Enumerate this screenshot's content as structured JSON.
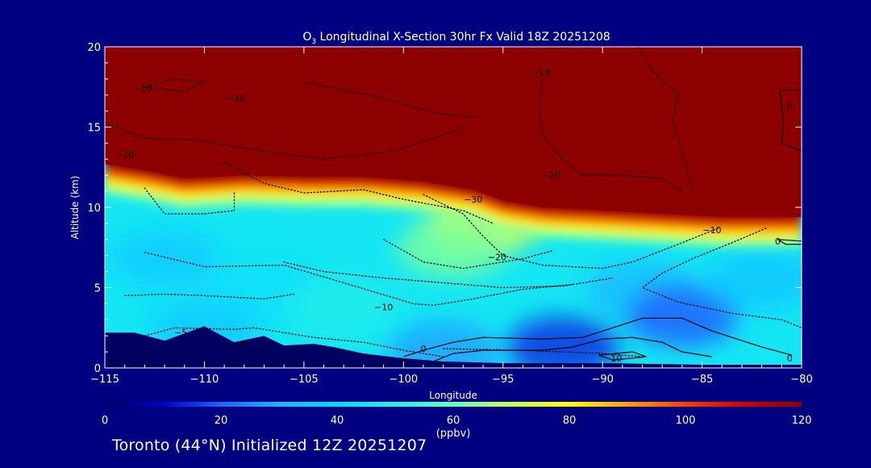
{
  "chart_data": {
    "type": "heatmap",
    "title": {
      "prefix": "O",
      "subscript": "3",
      "rest": " Longitudinal X-Section 30hr  Fx Valid 18Z 20251208"
    },
    "xlabel": "Longitude",
    "ylabel": "Altitude (km)",
    "xlim": [
      -115,
      -80
    ],
    "ylim": [
      0,
      20
    ],
    "x_ticks": [
      {
        "value": -115,
        "label": "−115"
      },
      {
        "value": -110,
        "label": "−110"
      },
      {
        "value": -105,
        "label": "−105"
      },
      {
        "value": -100,
        "label": "−100"
      },
      {
        "value": -95,
        "label": "−95"
      },
      {
        "value": -90,
        "label": "−90"
      },
      {
        "value": -85,
        "label": "−85"
      },
      {
        "value": -80,
        "label": "−80"
      }
    ],
    "y_ticks": [
      {
        "value": 0,
        "label": "0"
      },
      {
        "value": 5,
        "label": "5"
      },
      {
        "value": 10,
        "label": "10"
      },
      {
        "value": 15,
        "label": "15"
      },
      {
        "value": 20,
        "label": "20"
      }
    ],
    "colorbar": {
      "label": "(ppbv)",
      "min": 0,
      "max": 120,
      "ticks": [
        {
          "value": 0,
          "label": "0"
        },
        {
          "value": 20,
          "label": "20"
        },
        {
          "value": 40,
          "label": "40"
        },
        {
          "value": 60,
          "label": "60"
        },
        {
          "value": 80,
          "label": "80"
        },
        {
          "value": 100,
          "label": "100"
        },
        {
          "value": 120,
          "label": "120"
        }
      ],
      "colors": [
        "#000060",
        "#0000c8",
        "#1e64ff",
        "#1eb4ff",
        "#00dcff",
        "#28f0e6",
        "#64ffb4",
        "#c8ff50",
        "#ffff00",
        "#ffa000",
        "#ff3c00",
        "#d20000",
        "#8c0000"
      ]
    },
    "ozone_field": {
      "tropopause_height_km": [
        {
          "lon": -115,
          "km": 12.4
        },
        {
          "lon": -113,
          "km": 12.0
        },
        {
          "lon": -111,
          "km": 11.5
        },
        {
          "lon": -108,
          "km": 11.7
        },
        {
          "lon": -105,
          "km": 11.6
        },
        {
          "lon": -102,
          "km": 11.6
        },
        {
          "lon": -99,
          "km": 11.3
        },
        {
          "lon": -96.5,
          "km": 10.8
        },
        {
          "lon": -95,
          "km": 10.1
        },
        {
          "lon": -93,
          "km": 9.7
        },
        {
          "lon": -90,
          "km": 9.5
        },
        {
          "lon": -87,
          "km": 9.3
        },
        {
          "lon": -84,
          "km": 9.1
        },
        {
          "lon": -80,
          "km": 9.1
        }
      ],
      "stratosphere_ppbv": 120,
      "troposphere_ppbv": 45,
      "patches": [
        {
          "lon": -96,
          "km": 9.0,
          "ppbv": 75
        },
        {
          "lon": -97.5,
          "km": 7.5,
          "ppbv": 62
        },
        {
          "lon": -107,
          "km": 5.0,
          "ppbv": 42
        },
        {
          "lon": -112,
          "km": 6.8,
          "ppbv": 36
        },
        {
          "lon": -103,
          "km": 3.8,
          "ppbv": 48
        },
        {
          "lon": -88,
          "km": 4.8,
          "ppbv": 32
        },
        {
          "lon": -86,
          "km": 3.2,
          "ppbv": 20
        },
        {
          "lon": -92,
          "km": 1.3,
          "ppbv": 15
        },
        {
          "lon": -98,
          "km": 1.0,
          "ppbv": 28
        },
        {
          "lon": -82,
          "km": 5.5,
          "ppbv": 35
        },
        {
          "lon": -110,
          "km": 2.5,
          "ppbv": 36
        }
      ]
    },
    "terrain": [
      {
        "lon": -115,
        "km": 2.2
      },
      {
        "lon": -113.5,
        "km": 2.2
      },
      {
        "lon": -112,
        "km": 1.7
      },
      {
        "lon": -110,
        "km": 2.6
      },
      {
        "lon": -108.5,
        "km": 1.6
      },
      {
        "lon": -107,
        "km": 2.0
      },
      {
        "lon": -106,
        "km": 1.4
      },
      {
        "lon": -104.5,
        "km": 1.5
      },
      {
        "lon": -103.5,
        "km": 1.3
      },
      {
        "lon": -102,
        "km": 0.9
      },
      {
        "lon": -100,
        "km": 0.6
      },
      {
        "lon": -98,
        "km": 0.4
      },
      {
        "lon": -95,
        "km": 0.3
      },
      {
        "lon": -90,
        "km": 0.3
      },
      {
        "lon": -85,
        "km": 0.2
      },
      {
        "lon": -80,
        "km": 0.2
      }
    ],
    "contours": [
      {
        "style": "dotted",
        "points": [
          [
            -115,
            15.3
          ],
          [
            -113,
            14.3
          ],
          [
            -110.5,
            14.2
          ],
          [
            -107,
            13.5
          ],
          [
            -104,
            13.0
          ],
          [
            -100.5,
            13.5
          ],
          [
            -98,
            14.5
          ],
          [
            -97,
            15.0
          ]
        ]
      },
      {
        "style": "dotted",
        "points": [
          [
            -113,
            17.5
          ],
          [
            -111.5,
            18.0
          ],
          [
            -110,
            17.8
          ],
          [
            -111,
            17.2
          ],
          [
            -113,
            17.5
          ]
        ]
      },
      {
        "style": "dotted",
        "points": [
          [
            -105,
            17.8
          ],
          [
            -103,
            17.3
          ],
          [
            -101,
            16.8
          ],
          [
            -98.5,
            15.9
          ],
          [
            -96.5,
            15.6
          ]
        ]
      },
      {
        "style": "dotted",
        "points": [
          [
            -109,
            12.8
          ],
          [
            -107,
            11.5
          ],
          [
            -105,
            10.9
          ],
          [
            -102,
            11.1
          ],
          [
            -100,
            10.5
          ],
          [
            -97,
            9.8
          ],
          [
            -95.5,
            9.0
          ]
        ]
      },
      {
        "style": "dotted",
        "points": [
          [
            -113,
            11.2
          ],
          [
            -112,
            9.6
          ],
          [
            -110,
            9.6
          ],
          [
            -108.5,
            9.8
          ],
          [
            -108.5,
            11.0
          ]
        ]
      },
      {
        "style": "dotted",
        "points": [
          [
            -99,
            10.8
          ],
          [
            -97,
            9.6
          ],
          [
            -96,
            8.2
          ],
          [
            -95,
            7.0
          ],
          [
            -93,
            6.4
          ],
          [
            -90,
            6.2
          ],
          [
            -88.5,
            6.6
          ],
          [
            -86,
            7.8
          ],
          [
            -84.2,
            8.7
          ]
        ]
      },
      {
        "style": "dotted",
        "points": [
          [
            -93,
            18.0
          ],
          [
            -93.2,
            16.5
          ],
          [
            -93,
            14.5
          ],
          [
            -92,
            13.0
          ],
          [
            -91,
            12.0
          ],
          [
            -89,
            12.0
          ],
          [
            -87,
            11.8
          ],
          [
            -86,
            11.0
          ]
        ]
      },
      {
        "style": "dotted",
        "points": [
          [
            -88.2,
            20.0
          ],
          [
            -87.5,
            18.5
          ],
          [
            -86.2,
            17.0
          ],
          [
            -86.5,
            15.5
          ],
          [
            -86,
            13.5
          ],
          [
            -85.5,
            11.0
          ]
        ]
      },
      {
        "style": "dotted",
        "points": [
          [
            -101,
            8.0
          ],
          [
            -99,
            6.6
          ],
          [
            -97,
            6.2
          ],
          [
            -94,
            6.8
          ],
          [
            -92.5,
            7.3
          ]
        ]
      },
      {
        "style": "dotted",
        "points": [
          [
            -113,
            7.2
          ],
          [
            -110,
            6.3
          ],
          [
            -106,
            6.4
          ],
          [
            -103,
            5.3
          ],
          [
            -99.5,
            4.0
          ],
          [
            -98.5,
            3.9
          ],
          [
            -96.5,
            4.3
          ],
          [
            -94,
            4.9
          ],
          [
            -91.5,
            5.2
          ]
        ]
      },
      {
        "style": "dotted",
        "points": [
          [
            -106,
            6.6
          ],
          [
            -104,
            6.0
          ],
          [
            -101,
            5.6
          ],
          [
            -98,
            5.3
          ],
          [
            -95,
            5.0
          ],
          [
            -92,
            5.1
          ],
          [
            -89.5,
            5.6
          ]
        ]
      },
      {
        "style": "dotted",
        "points": [
          [
            -114,
            4.5
          ],
          [
            -112,
            4.6
          ],
          [
            -110,
            4.5
          ],
          [
            -107,
            4.3
          ],
          [
            -105.5,
            4.6
          ]
        ]
      },
      {
        "style": "dotted",
        "points": [
          [
            -113,
            2.0
          ],
          [
            -111.5,
            2.5
          ],
          [
            -108.5,
            2.4
          ],
          [
            -107.5,
            2.5
          ],
          [
            -106,
            2.2
          ],
          [
            -104.5,
            1.9
          ],
          [
            -102,
            1.6
          ],
          [
            -100,
            1.1
          ],
          [
            -98,
            0.7
          ]
        ]
      },
      {
        "style": "dotted",
        "points": [
          [
            -81.8,
            8.7
          ],
          [
            -83.5,
            7.8
          ],
          [
            -85.5,
            6.8
          ],
          [
            -87,
            5.9
          ],
          [
            -88,
            5.0
          ],
          [
            -86.2,
            4.1
          ],
          [
            -83.5,
            3.4
          ],
          [
            -81,
            3.0
          ],
          [
            -80,
            2.5
          ]
        ]
      },
      {
        "style": "dotted",
        "points": [
          [
            -98,
            1.2
          ],
          [
            -94,
            1.1
          ],
          [
            -90,
            0.9
          ],
          [
            -88,
            0.7
          ]
        ]
      },
      {
        "style": "solid",
        "points": [
          [
            -100,
            0.7
          ],
          [
            -99,
            1.1
          ],
          [
            -97.5,
            1.6
          ],
          [
            -96,
            1.9
          ],
          [
            -93,
            1.8
          ],
          [
            -91,
            1.9
          ],
          [
            -89.5,
            2.5
          ],
          [
            -88,
            3.1
          ],
          [
            -86,
            3.1
          ],
          [
            -84.5,
            2.3
          ],
          [
            -82,
            1.3
          ],
          [
            -80.5,
            0.8
          ]
        ]
      },
      {
        "style": "solid",
        "points": [
          [
            -98.5,
            0.4
          ],
          [
            -97.5,
            0.9
          ],
          [
            -96,
            1.1
          ],
          [
            -93,
            1.1
          ],
          [
            -91.5,
            1.3
          ],
          [
            -90,
            1.8
          ],
          [
            -88.5,
            1.9
          ],
          [
            -87,
            1.6
          ],
          [
            -86,
            1.0
          ],
          [
            -84.5,
            0.7
          ]
        ]
      },
      {
        "style": "solid",
        "points": [
          [
            -90.2,
            0.8
          ],
          [
            -88.5,
            1.0
          ],
          [
            -87.8,
            0.7
          ],
          [
            -89.5,
            0.5
          ],
          [
            -90.2,
            0.8
          ]
        ]
      },
      {
        "style": "solid",
        "points": [
          [
            -80,
            17.3
          ],
          [
            -81.1,
            17.3
          ],
          [
            -81,
            16.3
          ],
          [
            -80.9,
            15.3
          ],
          [
            -81,
            14.0
          ],
          [
            -80,
            13.5
          ]
        ]
      },
      {
        "style": "solid",
        "points": [
          [
            -80,
            7.9
          ],
          [
            -81.2,
            8.0
          ],
          [
            -80.8,
            7.7
          ],
          [
            -80,
            7.7
          ]
        ]
      }
    ],
    "contour_labels": [
      {
        "lon": -113.1,
        "km": 17.4,
        "text": "−10"
      },
      {
        "lon": -108.4,
        "km": 16.8,
        "text": "−10"
      },
      {
        "lon": -93.1,
        "km": 18.4,
        "text": "−10"
      },
      {
        "lon": -114.0,
        "km": 13.3,
        "text": "−20"
      },
      {
        "lon": -92.6,
        "km": 12.0,
        "text": "−20"
      },
      {
        "lon": -96.5,
        "km": 10.5,
        "text": "−30"
      },
      {
        "lon": -95.3,
        "km": 6.9,
        "text": "−20"
      },
      {
        "lon": -101,
        "km": 3.8,
        "text": "−10"
      },
      {
        "lon": -111.2,
        "km": 2.2,
        "text": "−5"
      },
      {
        "lon": -108.2,
        "km": 1.4,
        "text": "−5"
      },
      {
        "lon": -99,
        "km": 1.2,
        "text": "0"
      },
      {
        "lon": -84.5,
        "km": 8.6,
        "text": "−10"
      },
      {
        "lon": -81.2,
        "km": 7.9,
        "text": "0"
      },
      {
        "lon": -80.6,
        "km": 16.3,
        "text": "0"
      },
      {
        "lon": -80.6,
        "km": 0.6,
        "text": "0"
      },
      {
        "lon": -89.3,
        "km": 0.6,
        "text": "10"
      }
    ]
  },
  "caption": "Toronto (44°N) Initialized 12Z 20251207"
}
